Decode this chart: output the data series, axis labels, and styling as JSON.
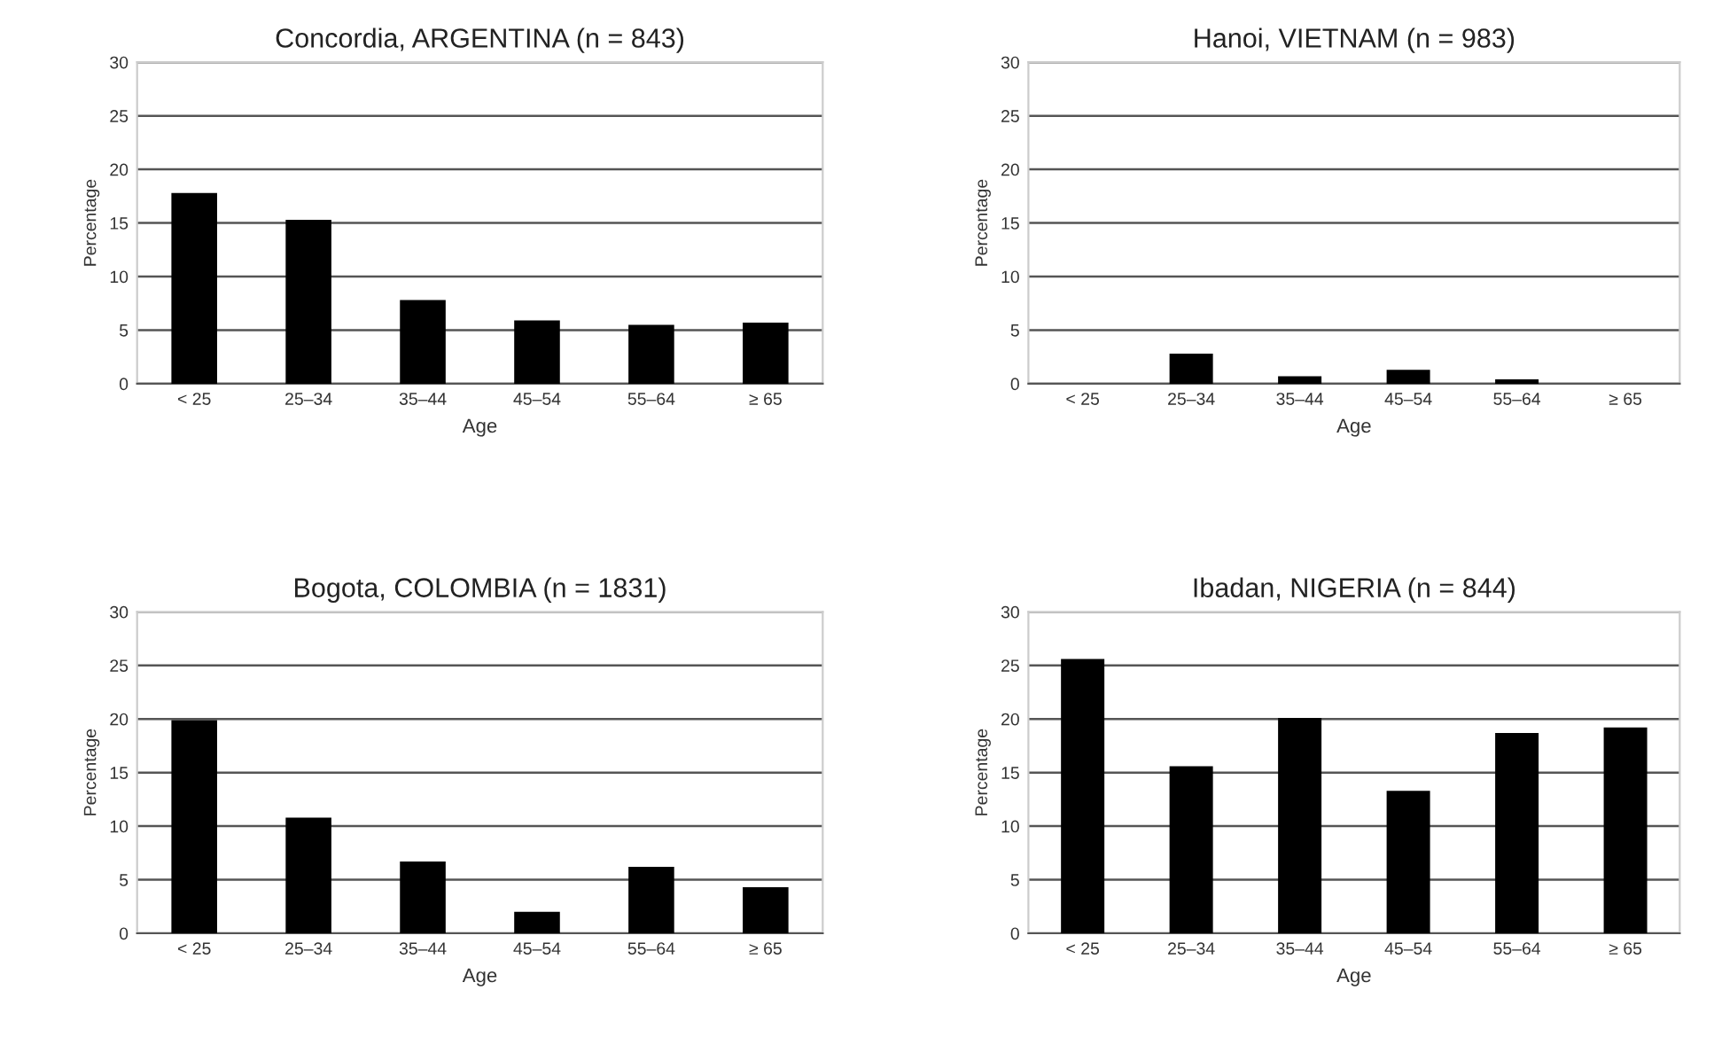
{
  "chart_data": [
    {
      "type": "bar",
      "title": "Concordia, ARGENTINA (n = 843)",
      "xlabel": "Age",
      "ylabel": "Percentage",
      "categories": [
        "< 25",
        "25–34",
        "35–44",
        "45–54",
        "55–64",
        "≥ 65"
      ],
      "values": [
        17.8,
        15.3,
        7.8,
        5.9,
        5.5,
        5.7
      ],
      "color": "#000000",
      "ylim": [
        0,
        30
      ],
      "yticks": [
        0,
        5,
        10,
        15,
        20,
        25,
        30
      ],
      "grid": "y",
      "legend": false
    },
    {
      "type": "bar",
      "title": "Hanoi, VIETNAM (n = 983)",
      "xlabel": "Age",
      "ylabel": "Percentage",
      "categories": [
        "< 25",
        "25–34",
        "35–44",
        "45–54",
        "55–64",
        "≥ 65"
      ],
      "values": [
        0,
        2.8,
        0.7,
        1.3,
        0.4,
        0
      ],
      "color": "#000000",
      "ylim": [
        0,
        30
      ],
      "yticks": [
        0,
        5,
        10,
        15,
        20,
        25,
        30
      ],
      "grid": "y",
      "legend": false
    },
    {
      "type": "bar",
      "title": "Bogota, COLOMBIA (n = 1831)",
      "xlabel": "Age",
      "ylabel": "Percentage",
      "categories": [
        "< 25",
        "25–34",
        "35–44",
        "45–54",
        "55–64",
        "≥ 65"
      ],
      "values": [
        19.9,
        10.8,
        6.7,
        2.0,
        6.2,
        4.3
      ],
      "color": "#000000",
      "ylim": [
        0,
        30
      ],
      "yticks": [
        0,
        5,
        10,
        15,
        20,
        25,
        30
      ],
      "grid": "y",
      "legend": false
    },
    {
      "type": "bar",
      "title": "Ibadan, NIGERIA (n = 844)",
      "xlabel": "Age",
      "ylabel": "Percentage",
      "categories": [
        "< 25",
        "25–34",
        "35–44",
        "45–54",
        "55–64",
        "≥ 65"
      ],
      "values": [
        25.6,
        15.6,
        20.1,
        13.3,
        18.7,
        19.2
      ],
      "color": "#000000",
      "ylim": [
        0,
        30
      ],
      "yticks": [
        0,
        5,
        10,
        15,
        20,
        25,
        30
      ],
      "grid": "y",
      "legend": false
    }
  ]
}
